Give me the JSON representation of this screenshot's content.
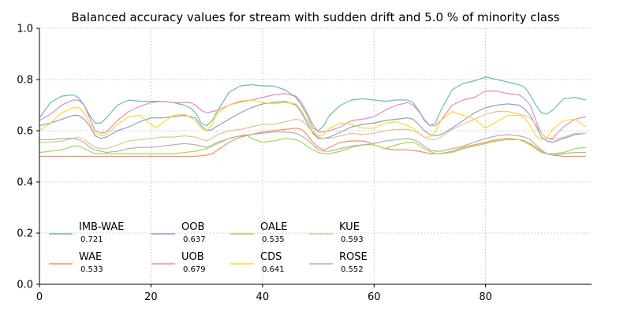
{
  "chart_data": {
    "type": "line",
    "title": "Balanced accuracy values for stream with sudden drift and 5.0 % of minority class",
    "xlabel": "",
    "ylabel": "",
    "xlim": [
      0,
      99
    ],
    "ylim": [
      0,
      1
    ],
    "xticks": [
      "0",
      "20",
      "40",
      "60",
      "80"
    ],
    "yticks": [
      "0.0",
      "0.2",
      "0.4",
      "0.6",
      "0.8",
      "1.0"
    ],
    "grid": true,
    "legend_position": "lower-left",
    "series": [
      {
        "name": "IMB-WAE",
        "score": "0.721",
        "color": "#66c2a5",
        "x": [
          0,
          2,
          4,
          6,
          7,
          8,
          9,
          10,
          11,
          12,
          14,
          16,
          18,
          20,
          22,
          24,
          26,
          27,
          28,
          29,
          30,
          31,
          32,
          34,
          36,
          38,
          40,
          42,
          44,
          46,
          47,
          48,
          49,
          50,
          51,
          52,
          54,
          56,
          58,
          60,
          62,
          64,
          66,
          67,
          68,
          69,
          70,
          71,
          72,
          74,
          76,
          78,
          80,
          82,
          84,
          86,
          87,
          88,
          89,
          90,
          91,
          92,
          94,
          96,
          98
        ],
        "y": [
          0.65,
          0.71,
          0.735,
          0.74,
          0.73,
          0.7,
          0.66,
          0.63,
          0.63,
          0.65,
          0.7,
          0.72,
          0.715,
          0.715,
          0.715,
          0.71,
          0.7,
          0.69,
          0.67,
          0.63,
          0.62,
          0.64,
          0.68,
          0.75,
          0.775,
          0.78,
          0.775,
          0.775,
          0.76,
          0.73,
          0.7,
          0.66,
          0.61,
          0.6,
          0.62,
          0.66,
          0.7,
          0.72,
          0.725,
          0.72,
          0.715,
          0.72,
          0.72,
          0.71,
          0.68,
          0.64,
          0.62,
          0.63,
          0.68,
          0.76,
          0.785,
          0.795,
          0.81,
          0.8,
          0.79,
          0.78,
          0.77,
          0.74,
          0.7,
          0.67,
          0.665,
          0.68,
          0.725,
          0.73,
          0.72
        ]
      },
      {
        "name": "WAE",
        "score": "0.533",
        "color": "#fc8d62",
        "x": [
          0,
          5,
          10,
          15,
          20,
          25,
          28,
          30,
          31,
          32,
          34,
          36,
          38,
          40,
          42,
          44,
          46,
          47,
          48,
          49,
          50,
          51,
          52,
          54,
          56,
          58,
          59,
          60,
          62,
          64,
          66,
          68,
          70,
          72,
          74,
          76,
          78,
          80,
          82,
          84,
          86,
          87,
          88,
          89,
          90,
          91,
          92,
          94,
          96,
          98
        ],
        "y": [
          0.5,
          0.5,
          0.5,
          0.5,
          0.5,
          0.5,
          0.5,
          0.505,
          0.51,
          0.525,
          0.555,
          0.575,
          0.585,
          0.595,
          0.6,
          0.605,
          0.61,
          0.605,
          0.585,
          0.555,
          0.535,
          0.525,
          0.535,
          0.555,
          0.56,
          0.56,
          0.555,
          0.545,
          0.53,
          0.525,
          0.525,
          0.52,
          0.51,
          0.51,
          0.52,
          0.535,
          0.545,
          0.555,
          0.565,
          0.57,
          0.565,
          0.56,
          0.55,
          0.535,
          0.52,
          0.51,
          0.505,
          0.5,
          0.5,
          0.5
        ]
      },
      {
        "name": "OOB",
        "score": "0.637",
        "color": "#8da0cb",
        "x": [
          0,
          2,
          4,
          6,
          7,
          8,
          9,
          10,
          11,
          12,
          14,
          16,
          18,
          20,
          22,
          24,
          26,
          28,
          29,
          30,
          31,
          32,
          34,
          36,
          38,
          40,
          42,
          44,
          46,
          47,
          48,
          49,
          50,
          51,
          52,
          54,
          56,
          58,
          60,
          62,
          64,
          66,
          67,
          68,
          69,
          70,
          71,
          72,
          74,
          76,
          78,
          80,
          82,
          84,
          86,
          87,
          88,
          89,
          90,
          91,
          92,
          94,
          96,
          98
        ],
        "y": [
          0.62,
          0.63,
          0.645,
          0.66,
          0.66,
          0.645,
          0.62,
          0.58,
          0.57,
          0.575,
          0.6,
          0.615,
          0.635,
          0.65,
          0.65,
          0.655,
          0.66,
          0.65,
          0.62,
          0.6,
          0.605,
          0.62,
          0.645,
          0.67,
          0.69,
          0.705,
          0.71,
          0.715,
          0.7,
          0.67,
          0.63,
          0.59,
          0.57,
          0.57,
          0.575,
          0.595,
          0.615,
          0.625,
          0.63,
          0.64,
          0.645,
          0.65,
          0.645,
          0.625,
          0.6,
          0.585,
          0.58,
          0.585,
          0.61,
          0.64,
          0.67,
          0.69,
          0.7,
          0.705,
          0.7,
          0.685,
          0.66,
          0.62,
          0.575,
          0.56,
          0.555,
          0.57,
          0.585,
          0.59
        ]
      },
      {
        "name": "UOB",
        "score": "0.679",
        "color": "#e78ac3",
        "x": [
          0,
          2,
          4,
          6,
          7,
          8,
          9,
          10,
          11,
          12,
          14,
          16,
          18,
          20,
          22,
          24,
          26,
          27,
          28,
          29,
          30,
          32,
          34,
          36,
          38,
          40,
          42,
          44,
          46,
          47,
          48,
          49,
          50,
          51,
          52,
          54,
          56,
          58,
          60,
          62,
          64,
          66,
          67,
          68,
          69,
          70,
          71,
          72,
          74,
          76,
          78,
          80,
          82,
          84,
          86,
          87,
          88,
          89,
          90,
          91,
          92,
          94,
          96,
          98
        ],
        "y": [
          0.64,
          0.665,
          0.7,
          0.72,
          0.72,
          0.7,
          0.65,
          0.6,
          0.59,
          0.595,
          0.64,
          0.675,
          0.695,
          0.71,
          0.715,
          0.71,
          0.71,
          0.71,
          0.7,
          0.68,
          0.67,
          0.68,
          0.7,
          0.715,
          0.72,
          0.73,
          0.74,
          0.745,
          0.735,
          0.71,
          0.67,
          0.625,
          0.595,
          0.595,
          0.6,
          0.615,
          0.64,
          0.645,
          0.655,
          0.68,
          0.7,
          0.71,
          0.7,
          0.675,
          0.645,
          0.62,
          0.62,
          0.64,
          0.7,
          0.72,
          0.73,
          0.755,
          0.755,
          0.745,
          0.74,
          0.725,
          0.7,
          0.64,
          0.59,
          0.57,
          0.57,
          0.615,
          0.645,
          0.655
        ]
      },
      {
        "name": "OALE",
        "score": "0.535",
        "color": "#a6d854",
        "x": [
          0,
          2,
          4,
          6,
          7,
          8,
          9,
          10,
          11,
          12,
          14,
          16,
          18,
          20,
          22,
          24,
          26,
          28,
          30,
          32,
          34,
          36,
          37,
          38,
          40,
          42,
          44,
          46,
          47,
          48,
          49,
          50,
          51,
          52,
          54,
          56,
          58,
          60,
          62,
          64,
          66,
          67,
          68,
          69,
          70,
          71,
          72,
          74,
          76,
          78,
          80,
          82,
          84,
          86,
          87,
          88,
          89,
          90,
          91,
          92,
          94,
          96,
          98
        ],
        "y": [
          0.515,
          0.52,
          0.525,
          0.54,
          0.54,
          0.53,
          0.52,
          0.51,
          0.51,
          0.51,
          0.51,
          0.51,
          0.51,
          0.51,
          0.51,
          0.51,
          0.515,
          0.52,
          0.53,
          0.55,
          0.57,
          0.58,
          0.585,
          0.57,
          0.555,
          0.56,
          0.57,
          0.565,
          0.555,
          0.54,
          0.525,
          0.515,
          0.51,
          0.51,
          0.52,
          0.535,
          0.545,
          0.545,
          0.53,
          0.545,
          0.555,
          0.555,
          0.545,
          0.53,
          0.52,
          0.51,
          0.51,
          0.515,
          0.53,
          0.54,
          0.55,
          0.56,
          0.565,
          0.565,
          0.555,
          0.545,
          0.53,
          0.515,
          0.51,
          0.51,
          0.515,
          0.53,
          0.535
        ]
      },
      {
        "name": "CDS",
        "score": "0.641",
        "color": "#ffd92f",
        "x": [
          0,
          2,
          4,
          6,
          7,
          8,
          9,
          10,
          11,
          12,
          14,
          16,
          18,
          20,
          21,
          22,
          24,
          26,
          28,
          29,
          30,
          31,
          32,
          34,
          36,
          38,
          40,
          42,
          44,
          46,
          47,
          48,
          49,
          50,
          51,
          52,
          54,
          56,
          58,
          60,
          62,
          64,
          66,
          67,
          68,
          69,
          70,
          71,
          72,
          74,
          76,
          78,
          80,
          82,
          84,
          86,
          87,
          88,
          89,
          90,
          91,
          92,
          94,
          96,
          98
        ],
        "y": [
          0.6,
          0.63,
          0.67,
          0.69,
          0.69,
          0.67,
          0.63,
          0.59,
          0.58,
          0.585,
          0.625,
          0.655,
          0.66,
          0.625,
          0.61,
          0.63,
          0.66,
          0.665,
          0.64,
          0.61,
          0.6,
          0.625,
          0.67,
          0.7,
          0.71,
          0.72,
          0.71,
          0.705,
          0.71,
          0.705,
          0.68,
          0.64,
          0.6,
          0.58,
          0.585,
          0.61,
          0.63,
          0.625,
          0.61,
          0.61,
          0.63,
          0.635,
          0.62,
          0.61,
          0.59,
          0.575,
          0.575,
          0.595,
          0.64,
          0.675,
          0.66,
          0.645,
          0.61,
          0.635,
          0.66,
          0.66,
          0.65,
          0.62,
          0.58,
          0.565,
          0.57,
          0.605,
          0.64,
          0.645,
          0.615
        ]
      },
      {
        "name": "KUE",
        "score": "0.593",
        "color": "#e5c494",
        "x": [
          0,
          2,
          4,
          6,
          7,
          8,
          9,
          10,
          11,
          12,
          14,
          16,
          18,
          20,
          22,
          24,
          26,
          28,
          30,
          32,
          34,
          36,
          38,
          40,
          42,
          44,
          46,
          47,
          48,
          49,
          50,
          51,
          52,
          54,
          56,
          58,
          60,
          62,
          64,
          66,
          67,
          68,
          69,
          70,
          71,
          72,
          74,
          76,
          78,
          80,
          82,
          84,
          86,
          87,
          88,
          89,
          90,
          91,
          92,
          94,
          96,
          98
        ],
        "y": [
          0.555,
          0.555,
          0.56,
          0.57,
          0.575,
          0.565,
          0.55,
          0.535,
          0.53,
          0.53,
          0.545,
          0.56,
          0.565,
          0.57,
          0.575,
          0.575,
          0.58,
          0.575,
          0.56,
          0.585,
          0.6,
          0.605,
          0.615,
          0.625,
          0.625,
          0.635,
          0.645,
          0.64,
          0.62,
          0.595,
          0.575,
          0.57,
          0.57,
          0.58,
          0.59,
          0.585,
          0.59,
          0.6,
          0.605,
          0.605,
          0.6,
          0.59,
          0.575,
          0.565,
          0.565,
          0.575,
          0.605,
          0.625,
          0.645,
          0.665,
          0.675,
          0.675,
          0.665,
          0.66,
          0.65,
          0.625,
          0.59,
          0.57,
          0.565,
          0.575,
          0.59,
          0.59
        ]
      },
      {
        "name": "ROSE",
        "score": "0.552",
        "color": "#b3b3b3",
        "x": [
          0,
          2,
          4,
          6,
          7,
          8,
          9,
          10,
          11,
          12,
          14,
          16,
          18,
          20,
          22,
          24,
          26,
          28,
          30,
          32,
          34,
          36,
          38,
          40,
          42,
          44,
          46,
          47,
          48,
          49,
          50,
          51,
          52,
          54,
          56,
          58,
          60,
          62,
          64,
          66,
          67,
          68,
          69,
          70,
          71,
          72,
          74,
          76,
          78,
          80,
          82,
          84,
          86,
          87,
          88,
          89,
          90,
          91,
          92,
          94,
          96,
          98
        ],
        "y": [
          0.565,
          0.565,
          0.57,
          0.57,
          0.565,
          0.555,
          0.535,
          0.525,
          0.52,
          0.515,
          0.52,
          0.53,
          0.535,
          0.535,
          0.54,
          0.545,
          0.55,
          0.545,
          0.535,
          0.555,
          0.57,
          0.58,
          0.585,
          0.59,
          0.595,
          0.595,
          0.59,
          0.58,
          0.565,
          0.545,
          0.525,
          0.52,
          0.52,
          0.53,
          0.54,
          0.545,
          0.55,
          0.56,
          0.565,
          0.57,
          0.565,
          0.555,
          0.54,
          0.525,
          0.52,
          0.52,
          0.53,
          0.54,
          0.555,
          0.57,
          0.58,
          0.585,
          0.58,
          0.575,
          0.565,
          0.545,
          0.525,
          0.51,
          0.505,
          0.51,
          0.515,
          0.515
        ]
      }
    ]
  }
}
